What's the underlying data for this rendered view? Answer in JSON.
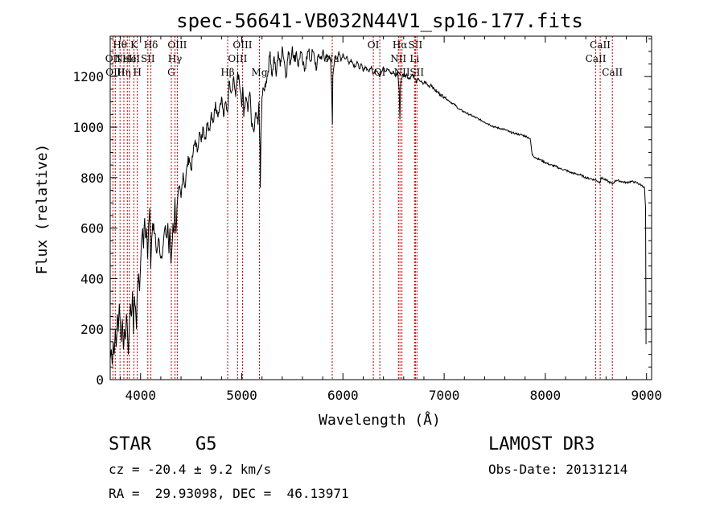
{
  "chart_data": {
    "type": "line",
    "title": "spec-56641-VB032N44V1_sp16-177.fits",
    "xlabel": "Wavelength (Å)",
    "ylabel": "Flux (relative)",
    "xlim": [
      3700,
      9050
    ],
    "ylim": [
      0,
      1360
    ],
    "xticks": [
      4000,
      5000,
      6000,
      7000,
      8000,
      9000
    ],
    "yticks": [
      0,
      200,
      400,
      600,
      800,
      1000,
      1200
    ],
    "series": [
      {
        "name": "flux",
        "points": [
          [
            3700,
            80
          ],
          [
            3710,
            120
          ],
          [
            3720,
            60
          ],
          [
            3730,
            150
          ],
          [
            3740,
            100
          ],
          [
            3750,
            200
          ],
          [
            3760,
            130
          ],
          [
            3770,
            260
          ],
          [
            3780,
            190
          ],
          [
            3790,
            300
          ],
          [
            3800,
            220
          ],
          [
            3810,
            150
          ],
          [
            3820,
            240
          ],
          [
            3830,
            120
          ],
          [
            3840,
            200
          ],
          [
            3850,
            160
          ],
          [
            3860,
            260
          ],
          [
            3870,
            200
          ],
          [
            3880,
            100
          ],
          [
            3890,
            230
          ],
          [
            3900,
            300
          ],
          [
            3910,
            250
          ],
          [
            3920,
            350
          ],
          [
            3930,
            180
          ],
          [
            3940,
            330
          ],
          [
            3950,
            290
          ],
          [
            3960,
            200
          ],
          [
            3970,
            380
          ],
          [
            3980,
            420
          ],
          [
            3990,
            350
          ],
          [
            4000,
            450
          ],
          [
            4010,
            560
          ],
          [
            4020,
            600
          ],
          [
            4030,
            520
          ],
          [
            4040,
            640
          ],
          [
            4050,
            560
          ],
          [
            4060,
            600
          ],
          [
            4070,
            480
          ],
          [
            4080,
            620
          ],
          [
            4090,
            680
          ],
          [
            4100,
            440
          ],
          [
            4110,
            560
          ],
          [
            4120,
            620
          ],
          [
            4140,
            580
          ],
          [
            4160,
            500
          ],
          [
            4180,
            560
          ],
          [
            4200,
            480
          ],
          [
            4220,
            520
          ],
          [
            4240,
            600
          ],
          [
            4260,
            560
          ],
          [
            4270,
            620
          ],
          [
            4280,
            500
          ],
          [
            4290,
            600
          ],
          [
            4300,
            460
          ],
          [
            4310,
            520
          ],
          [
            4320,
            620
          ],
          [
            4330,
            580
          ],
          [
            4340,
            720
          ],
          [
            4350,
            580
          ],
          [
            4360,
            680
          ],
          [
            4380,
            760
          ],
          [
            4400,
            720
          ],
          [
            4420,
            820
          ],
          [
            4440,
            760
          ],
          [
            4460,
            850
          ],
          [
            4480,
            880
          ],
          [
            4500,
            830
          ],
          [
            4520,
            900
          ],
          [
            4540,
            950
          ],
          [
            4560,
            900
          ],
          [
            4580,
            980
          ],
          [
            4600,
            940
          ],
          [
            4620,
            1000
          ],
          [
            4640,
            960
          ],
          [
            4660,
            1010
          ],
          [
            4680,
            990
          ],
          [
            4700,
            1060
          ],
          [
            4720,
            1020
          ],
          [
            4740,
            1100
          ],
          [
            4760,
            1050
          ],
          [
            4780,
            1080
          ],
          [
            4800,
            1120
          ],
          [
            4820,
            1040
          ],
          [
            4840,
            1100
          ],
          [
            4860,
            1060
          ],
          [
            4870,
            1150
          ],
          [
            4880,
            1180
          ],
          [
            4900,
            1140
          ],
          [
            4920,
            1200
          ],
          [
            4940,
            1120
          ],
          [
            4960,
            1220
          ],
          [
            4980,
            1160
          ],
          [
            5000,
            1080
          ],
          [
            5010,
            1160
          ],
          [
            5020,
            1040
          ],
          [
            5040,
            1120
          ],
          [
            5060,
            1060
          ],
          [
            5080,
            1140
          ],
          [
            5100,
            1000
          ],
          [
            5120,
            980
          ],
          [
            5140,
            1060
          ],
          [
            5160,
            1010
          ],
          [
            5170,
            1100
          ],
          [
            5180,
            920
          ],
          [
            5183,
            760
          ],
          [
            5190,
            980
          ],
          [
            5200,
            1120
          ],
          [
            5220,
            1150
          ],
          [
            5240,
            1180
          ],
          [
            5260,
            1220
          ],
          [
            5280,
            1300
          ],
          [
            5300,
            1200
          ],
          [
            5320,
            1280
          ],
          [
            5340,
            1200
          ],
          [
            5360,
            1300
          ],
          [
            5380,
            1240
          ],
          [
            5400,
            1320
          ],
          [
            5420,
            1260
          ],
          [
            5440,
            1200
          ],
          [
            5460,
            1300
          ],
          [
            5480,
            1250
          ],
          [
            5500,
            1320
          ],
          [
            5520,
            1260
          ],
          [
            5540,
            1300
          ],
          [
            5560,
            1240
          ],
          [
            5580,
            1300
          ],
          [
            5600,
            1260
          ],
          [
            5620,
            1220
          ],
          [
            5640,
            1280
          ],
          [
            5660,
            1300
          ],
          [
            5680,
            1260
          ],
          [
            5700,
            1300
          ],
          [
            5720,
            1270
          ],
          [
            5740,
            1230
          ],
          [
            5760,
            1290
          ],
          [
            5780,
            1270
          ],
          [
            5800,
            1300
          ],
          [
            5820,
            1260
          ],
          [
            5840,
            1290
          ],
          [
            5860,
            1270
          ],
          [
            5880,
            1250
          ],
          [
            5890,
            1120
          ],
          [
            5896,
            1010
          ],
          [
            5900,
            1200
          ],
          [
            5920,
            1280
          ],
          [
            5940,
            1270
          ],
          [
            5960,
            1300
          ],
          [
            5980,
            1260
          ],
          [
            6000,
            1290
          ],
          [
            6020,
            1270
          ],
          [
            6040,
            1280
          ],
          [
            6060,
            1250
          ],
          [
            6080,
            1270
          ],
          [
            6100,
            1250
          ],
          [
            6120,
            1240
          ],
          [
            6140,
            1260
          ],
          [
            6160,
            1230
          ],
          [
            6180,
            1250
          ],
          [
            6200,
            1220
          ],
          [
            6220,
            1240
          ],
          [
            6240,
            1230
          ],
          [
            6260,
            1220
          ],
          [
            6280,
            1240
          ],
          [
            6300,
            1210
          ],
          [
            6320,
            1230
          ],
          [
            6340,
            1220
          ],
          [
            6360,
            1200
          ],
          [
            6380,
            1220
          ],
          [
            6400,
            1240
          ],
          [
            6420,
            1220
          ],
          [
            6440,
            1230
          ],
          [
            6460,
            1220
          ],
          [
            6480,
            1210
          ],
          [
            6500,
            1220
          ],
          [
            6520,
            1200
          ],
          [
            6540,
            1220
          ],
          [
            6555,
            1150
          ],
          [
            6563,
            1030
          ],
          [
            6570,
            1170
          ],
          [
            6590,
            1210
          ],
          [
            6610,
            1200
          ],
          [
            6630,
            1210
          ],
          [
            6650,
            1190
          ],
          [
            6670,
            1200
          ],
          [
            6690,
            1210
          ],
          [
            6710,
            1190
          ],
          [
            6730,
            1180
          ],
          [
            6750,
            1190
          ],
          [
            6770,
            1180
          ],
          [
            6790,
            1170
          ],
          [
            6810,
            1180
          ],
          [
            6830,
            1170
          ],
          [
            6850,
            1160
          ],
          [
            6870,
            1170
          ],
          [
            6900,
            1150
          ],
          [
            6930,
            1140
          ],
          [
            6960,
            1130
          ],
          [
            7000,
            1120
          ],
          [
            7030,
            1110
          ],
          [
            7060,
            1100
          ],
          [
            7100,
            1090
          ],
          [
            7150,
            1070
          ],
          [
            7200,
            1060
          ],
          [
            7250,
            1050
          ],
          [
            7300,
            1040
          ],
          [
            7350,
            1030
          ],
          [
            7400,
            1020
          ],
          [
            7450,
            1010
          ],
          [
            7500,
            1000
          ],
          [
            7550,
            995
          ],
          [
            7600,
            990
          ],
          [
            7650,
            980
          ],
          [
            7700,
            975
          ],
          [
            7750,
            970
          ],
          [
            7800,
            965
          ],
          [
            7850,
            955
          ],
          [
            7870,
            890
          ],
          [
            7900,
            880
          ],
          [
            7950,
            870
          ],
          [
            8000,
            860
          ],
          [
            8050,
            850
          ],
          [
            8100,
            845
          ],
          [
            8150,
            835
          ],
          [
            8200,
            830
          ],
          [
            8250,
            820
          ],
          [
            8300,
            815
          ],
          [
            8350,
            810
          ],
          [
            8400,
            800
          ],
          [
            8450,
            795
          ],
          [
            8500,
            790
          ],
          [
            8542,
            780
          ],
          [
            8550,
            800
          ],
          [
            8600,
            790
          ],
          [
            8662,
            775
          ],
          [
            8700,
            790
          ],
          [
            8750,
            785
          ],
          [
            8800,
            780
          ],
          [
            8850,
            785
          ],
          [
            8900,
            780
          ],
          [
            8950,
            770
          ],
          [
            8980,
            760
          ],
          [
            8990,
            680
          ],
          [
            8995,
            140
          ]
        ]
      }
    ],
    "lines": [
      {
        "wavelength": 3727,
        "label": "OII",
        "row": 1
      },
      {
        "wavelength": 3750,
        "label": "OIII",
        "row": 2
      },
      {
        "wavelength": 3797,
        "label": "Hθ",
        "row": 0
      },
      {
        "wavelength": 3835,
        "label": "Hη",
        "row": 2
      },
      {
        "wavelength": 3869,
        "label": "NeIII",
        "row": 1
      },
      {
        "wavelength": 3889,
        "label": "He",
        "row": 1
      },
      {
        "wavelength": 3934,
        "label": "K",
        "row": 0
      },
      {
        "wavelength": 3968,
        "label": "H",
        "row": 2
      },
      {
        "wavelength": 4072,
        "label": "SII",
        "row": 1
      },
      {
        "wavelength": 4102,
        "label": "Hδ",
        "row": 0
      },
      {
        "wavelength": 4304,
        "label": "G",
        "row": 2
      },
      {
        "wavelength": 4340,
        "label": "Hγ",
        "row": 1
      },
      {
        "wavelength": 4363,
        "label": "OIII",
        "row": 0
      },
      {
        "wavelength": 4861,
        "label": "Hβ",
        "row": 2
      },
      {
        "wavelength": 4959,
        "label": "OIII",
        "row": 1
      },
      {
        "wavelength": 5007,
        "label": "OIII",
        "row": 0
      },
      {
        "wavelength": 5175,
        "label": "Mg",
        "row": 2
      },
      {
        "wavelength": 5894,
        "label": "Na",
        "row": 1
      },
      {
        "wavelength": 6300,
        "label": "OI",
        "row": 0
      },
      {
        "wavelength": 6364,
        "label": "OI",
        "row": 2
      },
      {
        "wavelength": 6548,
        "label": "NII",
        "row": 1
      },
      {
        "wavelength": 6563,
        "label": "Hα",
        "row": 0
      },
      {
        "wavelength": 6583,
        "label": "NII",
        "row": 2
      },
      {
        "wavelength": 6707,
        "label": "Li",
        "row": 1
      },
      {
        "wavelength": 6716,
        "label": "SII",
        "row": 0
      },
      {
        "wavelength": 6731,
        "label": "SII",
        "row": 2
      },
      {
        "wavelength": 8498,
        "label": "CaII",
        "row": 1
      },
      {
        "wavelength": 8542,
        "label": "CaII",
        "row": 0
      },
      {
        "wavelength": 8662,
        "label": "CaII",
        "row": 2
      }
    ]
  },
  "footer": {
    "object_class": "STAR",
    "subclass": "G5",
    "survey": "LAMOST DR3",
    "cz": "cz = -20.4 ± 9.2 km/s",
    "obs_date": "Obs-Date: 20131214",
    "coords": "RA =  29.93098, DEC =  46.13971"
  },
  "colors": {
    "line_marker": "#c00000",
    "spectrum": "#000000"
  }
}
